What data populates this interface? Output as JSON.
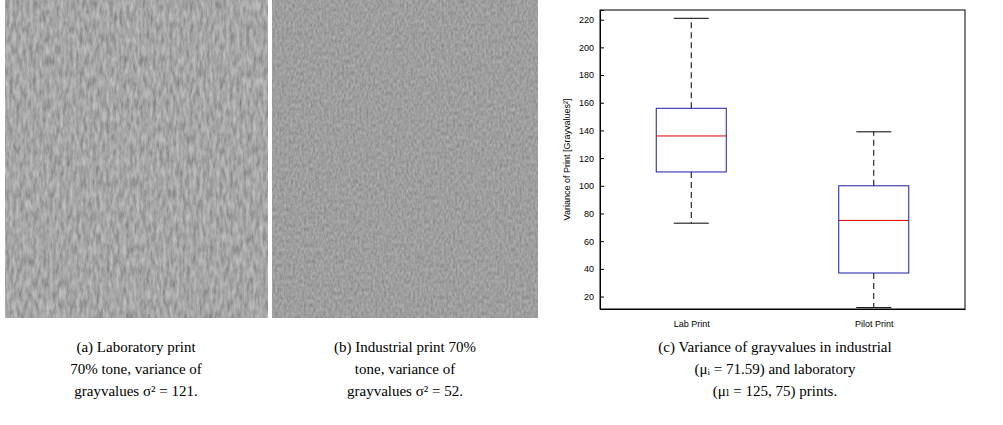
{
  "captions": {
    "a": [
      "(a) Laboratory print",
      "70% tone, variance of",
      "grayvalues σ² = 121."
    ],
    "b": [
      "(b) Industrial print 70%",
      "tone, variance of",
      "grayvalues σ² = 52."
    ],
    "c": [
      "(c) Variance of grayvalues in industrial",
      "(μᵢ = 71.59) and laboratory",
      "(μₗ = 125, 75) prints."
    ]
  },
  "chart_data": {
    "type": "box",
    "y_label": "Variance of Print [Grayvalues²]",
    "categories": [
      "Lab Print",
      "Pilot Print"
    ],
    "boxes": [
      {
        "low": 73,
        "q1": 110,
        "median": 136,
        "q3": 156,
        "high": 221
      },
      {
        "low": 12,
        "q1": 37,
        "median": 75,
        "q3": 100,
        "high": 139
      }
    ],
    "color": "#1c1ca8",
    "ylim": [
      11,
      227
    ],
    "yticks": [
      20,
      40,
      60,
      80,
      100,
      120,
      140,
      160,
      180,
      200,
      220
    ]
  }
}
